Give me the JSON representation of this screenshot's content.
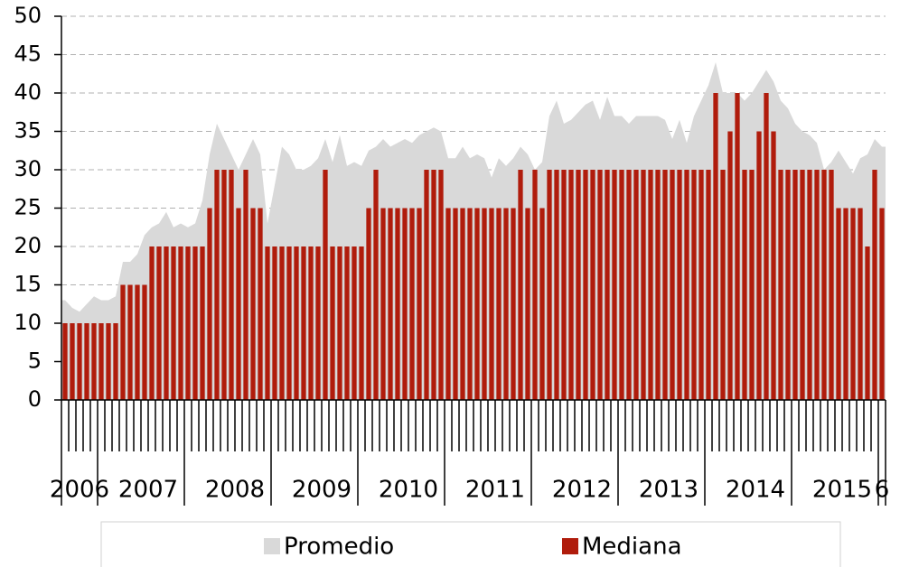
{
  "chart_data": {
    "type": "bar_area",
    "categories": [
      null,
      null,
      "2006",
      null,
      null,
      null,
      null,
      null,
      null,
      null,
      null,
      "2007",
      null,
      null,
      null,
      null,
      null,
      null,
      null,
      null,
      null,
      null,
      null,
      "2008",
      null,
      null,
      null,
      null,
      null,
      null,
      null,
      null,
      null,
      null,
      null,
      "2009",
      null,
      null,
      null,
      null,
      null,
      null,
      null,
      null,
      null,
      null,
      null,
      "2010",
      null,
      null,
      null,
      null,
      null,
      null,
      null,
      null,
      null,
      null,
      null,
      "2011",
      null,
      null,
      null,
      null,
      null,
      null,
      null,
      null,
      null,
      null,
      null,
      "2012",
      null,
      null,
      null,
      null,
      null,
      null,
      null,
      null,
      null,
      null,
      null,
      "2013",
      null,
      null,
      null,
      null,
      null,
      null,
      null,
      null,
      null,
      null,
      null,
      "2014",
      null,
      null,
      null,
      null,
      null,
      null,
      null,
      null,
      null,
      null,
      null,
      "2015",
      null,
      null,
      null,
      null,
      null,
      "6"
    ],
    "series": [
      {
        "name": "Promedio",
        "color": "#d9d9d9",
        "kind": "area",
        "values": [
          13,
          12,
          11.5,
          12.5,
          13.5,
          13,
          13,
          13.5,
          18,
          18,
          19,
          21.5,
          22.5,
          23,
          24.5,
          22.5,
          23,
          22.5,
          23,
          26,
          32,
          36,
          34,
          32,
          30,
          32,
          34,
          32,
          23,
          28,
          33,
          32,
          30,
          30,
          30.5,
          31.5,
          34,
          31,
          34.5,
          30.5,
          31,
          30.5,
          32.5,
          33,
          34,
          33,
          33.5,
          34,
          33.5,
          34.5,
          35,
          35.5,
          35,
          31.5,
          31.5,
          33,
          31.5,
          32,
          31.5,
          29,
          31.5,
          30.5,
          31.5,
          33,
          32,
          30,
          31,
          37,
          39,
          36,
          36.5,
          37.5,
          38.5,
          39,
          36.5,
          39.5,
          37,
          37,
          36,
          37,
          37,
          37,
          37,
          36.5,
          34,
          36.5,
          33.5,
          37,
          39,
          41,
          44,
          40,
          40,
          40,
          39,
          40,
          41.5,
          43,
          41.5,
          39,
          38,
          36,
          35,
          34.5,
          33.5,
          30,
          31,
          32.5,
          31,
          29.5,
          31.5,
          32,
          34,
          33
        ]
      },
      {
        "name": "Mediana",
        "color": "#b01c0c",
        "kind": "bar",
        "values": [
          10,
          10,
          10,
          10,
          10,
          10,
          10,
          10,
          15,
          15,
          15,
          15,
          20,
          20,
          20,
          20,
          20,
          20,
          20,
          20,
          25,
          30,
          30,
          30,
          25,
          30,
          25,
          25,
          20,
          20,
          20,
          20,
          20,
          20,
          20,
          20,
          30,
          20,
          20,
          20,
          20,
          20,
          25,
          30,
          25,
          25,
          25,
          25,
          25,
          25,
          30,
          30,
          30,
          25,
          25,
          25,
          25,
          25,
          25,
          25,
          25,
          25,
          25,
          30,
          25,
          30,
          25,
          30,
          30,
          30,
          30,
          30,
          30,
          30,
          30,
          30,
          30,
          30,
          30,
          30,
          30,
          30,
          30,
          30,
          30,
          30,
          30,
          30,
          30,
          30,
          40,
          30,
          35,
          40,
          30,
          30,
          35,
          40,
          35,
          30,
          30,
          30,
          30,
          30,
          30,
          30,
          30,
          25,
          25,
          25,
          25,
          20,
          30,
          25
        ]
      }
    ],
    "ylim": [
      0,
      50
    ],
    "yticks": [
      0,
      5,
      10,
      15,
      20,
      25,
      30,
      35,
      40,
      45,
      50
    ],
    "grid": true
  }
}
